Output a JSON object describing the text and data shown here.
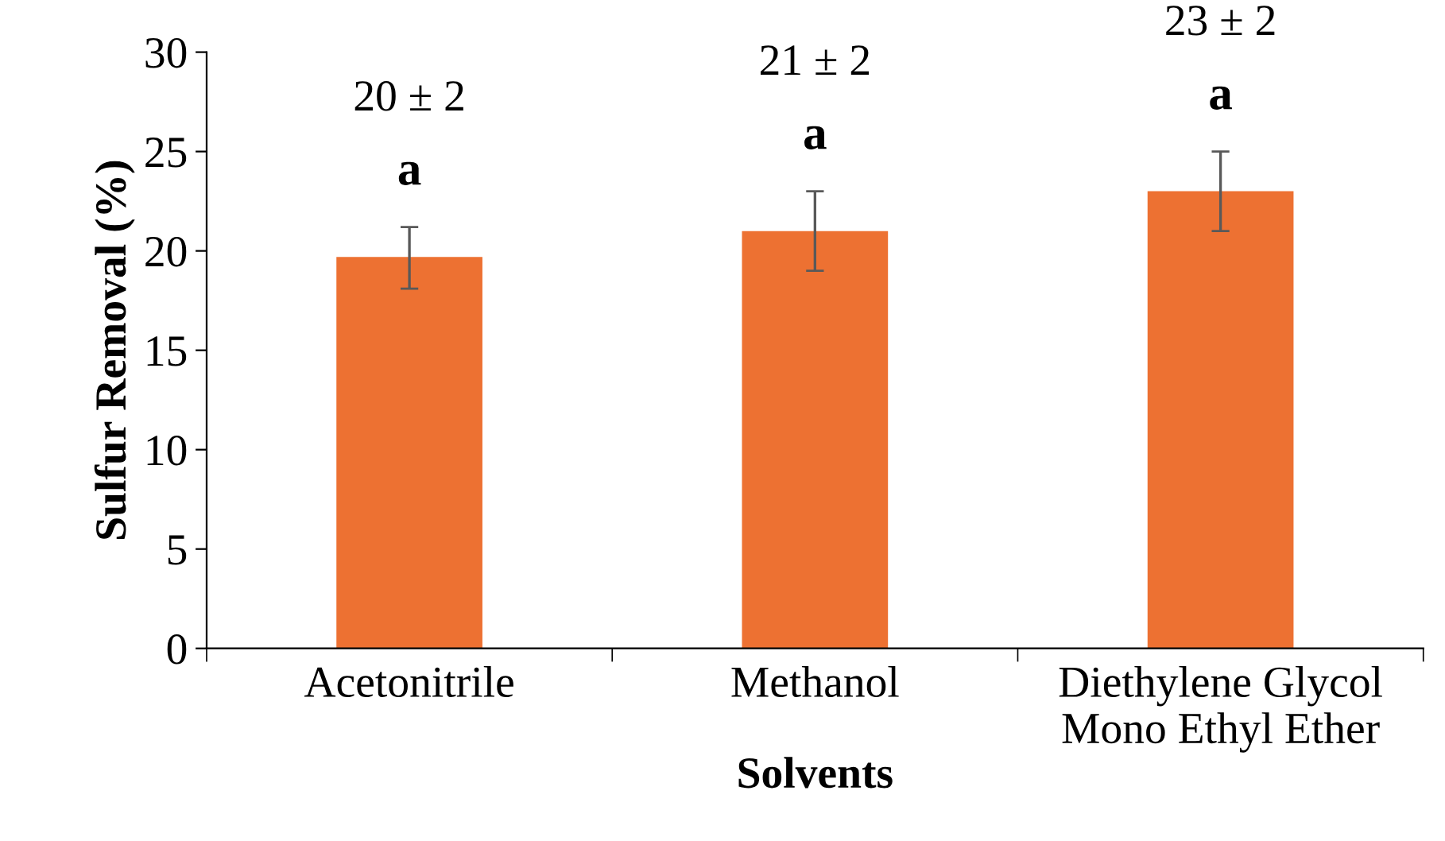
{
  "chart_data": {
    "type": "bar",
    "xlabel": "Solvents",
    "ylabel": "Sulfur Removal (%)",
    "categories": [
      "Acetonitrile",
      "Methanol",
      "Diethylene Glycol\nMono Ethyl Ether"
    ],
    "values": [
      19.7,
      21,
      23
    ],
    "color": "#ed7132",
    "errors": [
      [
        18.1,
        21.2
      ],
      2,
      2
    ],
    "ylim": [
      0,
      30
    ],
    "yticks": [
      0,
      5,
      10,
      15,
      20,
      25,
      30
    ],
    "grid": false,
    "legend": false,
    "annotations": [
      "20 ± 2",
      "a",
      "21 ± 2",
      "a",
      "23 ± 2",
      "a"
    ]
  }
}
